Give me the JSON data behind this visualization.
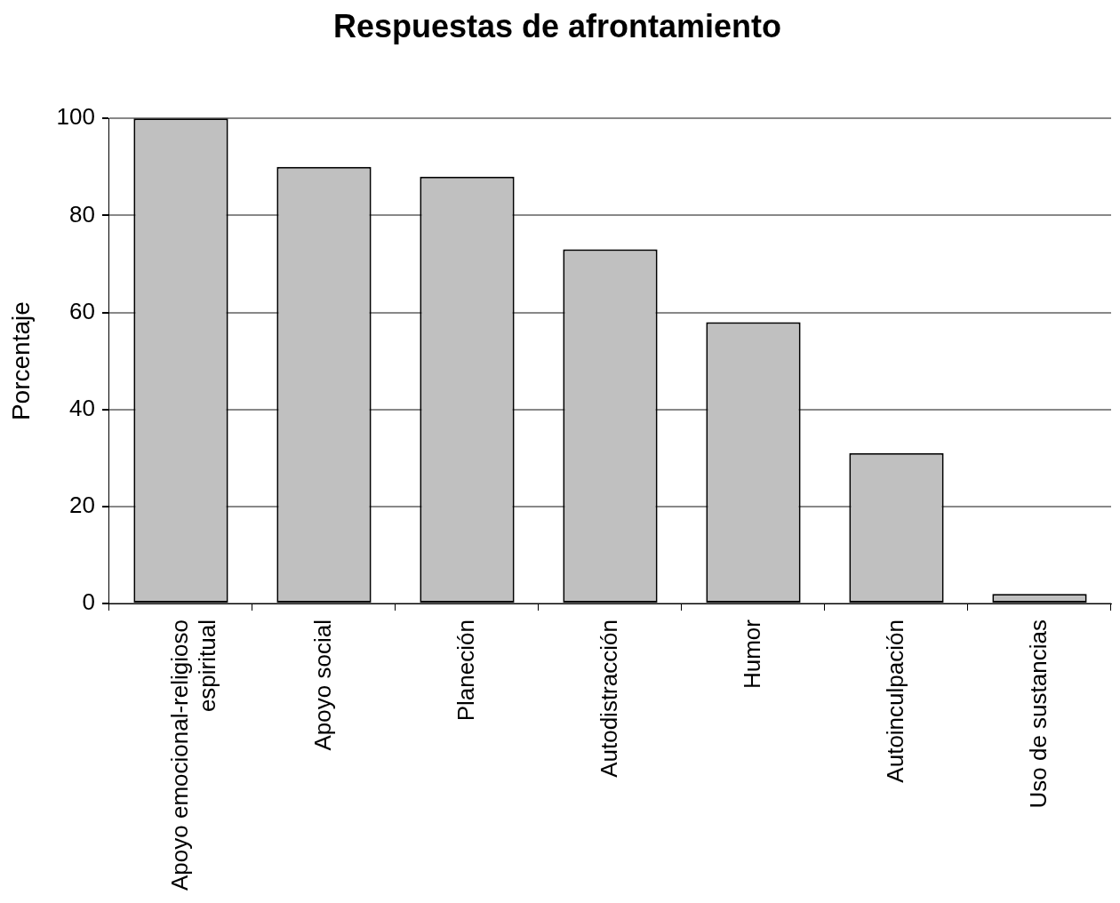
{
  "chart_data": {
    "type": "bar",
    "title": "Respuestas de afrontamiento",
    "ylabel": "Porcentaje",
    "categories": [
      "Apoyo emocional-religioso espiritual",
      "Apoyo social",
      "Planeción",
      "Autodistracción",
      "Humor",
      "Autoinculpación",
      "Uso de sustancias"
    ],
    "values": [
      100,
      90,
      88,
      73,
      58,
      31,
      2
    ],
    "color": "#c0c0c0",
    "ylim": [
      0,
      100
    ],
    "yticks": [
      0,
      20,
      40,
      60,
      80,
      100
    ],
    "grid": "y",
    "legend": false
  }
}
